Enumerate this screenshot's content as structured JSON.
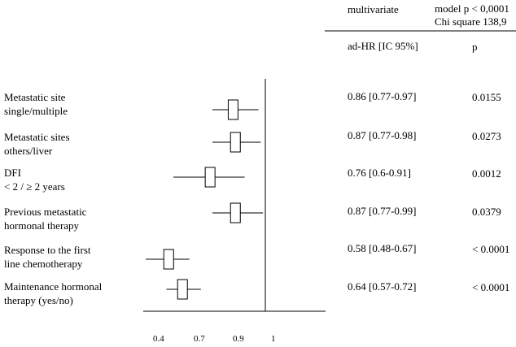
{
  "header": {
    "analysis_label": "multivariate",
    "model_p": "model p < 0,0001",
    "chi_square": "Chi square 138,9",
    "col_hr": "ad-HR [IC 95%]",
    "col_p": "p"
  },
  "chart_data": {
    "type": "forest",
    "title": "",
    "xlabel": "",
    "ylabel": "",
    "reference_line": 1,
    "x_ticks": [
      "0.4",
      "0.7",
      "0.9",
      "1"
    ],
    "rows": [
      {
        "label": [
          "Metastatic site",
          "single/multiple"
        ],
        "hr": 0.86,
        "ci_low": 0.77,
        "ci_high": 0.97,
        "hr_text": "0.86 [0.77-0.97]",
        "p": "0.0155"
      },
      {
        "label": [
          "Metastatic sites",
          "others/liver"
        ],
        "hr": 0.87,
        "ci_low": 0.77,
        "ci_high": 0.98,
        "hr_text": "0.87 [0.77-0.98]",
        "p": "0.0273"
      },
      {
        "label": [
          "DFI",
          "< 2 / ≥ 2 years"
        ],
        "hr": 0.76,
        "ci_low": 0.6,
        "ci_high": 0.91,
        "hr_text": "0.76 [0.6-0.91]",
        "p": "0.0012"
      },
      {
        "label": [
          "Previous metastatic",
          "hormonal therapy"
        ],
        "hr": 0.87,
        "ci_low": 0.77,
        "ci_high": 0.99,
        "hr_text": "0.87 [0.77-0.99]",
        "p": "0.0379"
      },
      {
        "label": [
          "Response to the first",
          "line chemotherapy"
        ],
        "hr": 0.58,
        "ci_low": 0.48,
        "ci_high": 0.67,
        "hr_text": "0.58 [0.48-0.67]",
        "p": "< 0.0001"
      },
      {
        "label": [
          "Maintenance hormonal",
          "therapy (yes/no)"
        ],
        "hr": 0.64,
        "ci_low": 0.57,
        "ci_high": 0.72,
        "hr_text": "0.64 [0.57-0.72]",
        "p": "< 0.0001"
      }
    ]
  }
}
